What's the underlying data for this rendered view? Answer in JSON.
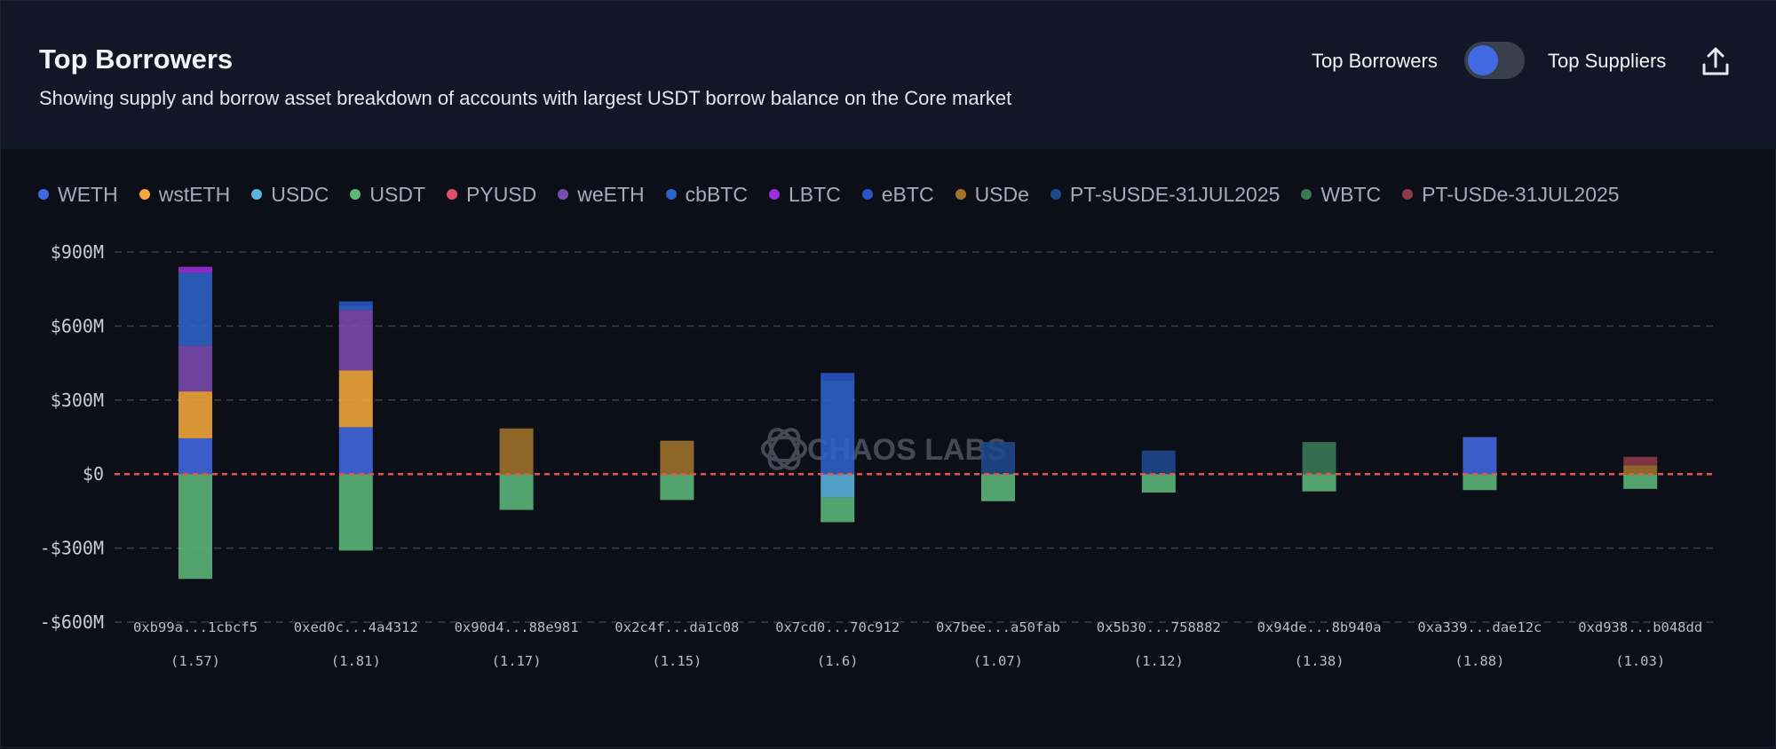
{
  "header": {
    "title": "Top Borrowers",
    "subtitle": "Showing supply and borrow asset breakdown of accounts with largest USDT borrow balance on the Core market",
    "toggle_left_label": "Top Borrowers",
    "toggle_right_label": "Top Suppliers",
    "toggle_state": "Top Borrowers",
    "export_icon": "share-upload-icon"
  },
  "watermark": "CHAOS LABS",
  "chart_data": {
    "type": "bar",
    "stacked": true,
    "title": "Top Borrowers",
    "ylim": [
      -600,
      900
    ],
    "yticks": [
      -600,
      -300,
      0,
      300,
      600,
      900
    ],
    "ytick_labels": [
      "-$600M",
      "-$300M",
      "$0",
      "$300M",
      "$600M",
      "$900M"
    ],
    "grid": true,
    "legend_position": "top-left",
    "zero_line_color": "#e5534b",
    "categories": [
      "0xb99a...1cbcf5",
      "0xed0c...4a4312",
      "0x90d4...88e981",
      "0x2c4f...da1c08",
      "0x7cd0...70c912",
      "0x7bee...a50fab",
      "0x5b30...758882",
      "0x94de...8b940a",
      "0xa339...dae12c",
      "0xd938...b048dd"
    ],
    "category_sublabels": [
      "(1.57)",
      "(1.81)",
      "(1.17)",
      "(1.15)",
      "(1.6)",
      "(1.07)",
      "(1.12)",
      "(1.38)",
      "(1.88)",
      "(1.03)"
    ],
    "series": [
      {
        "name": "WETH",
        "color": "#4169e1",
        "values": [
          145,
          190,
          0,
          0,
          0,
          0,
          0,
          0,
          150,
          0
        ]
      },
      {
        "name": "wstETH",
        "color": "#f5a83a",
        "values": [
          190,
          230,
          0,
          0,
          0,
          0,
          0,
          0,
          0,
          0
        ]
      },
      {
        "name": "USDC",
        "color": "#5ab4dd",
        "values": [
          0,
          0,
          0,
          0,
          -95,
          0,
          0,
          0,
          0,
          0
        ]
      },
      {
        "name": "USDT",
        "color": "#5cb87a",
        "values": [
          -425,
          -310,
          -145,
          -105,
          -100,
          -110,
          -75,
          -70,
          -65,
          -60
        ]
      },
      {
        "name": "PYUSD",
        "color": "#e0506a",
        "values": [
          0,
          0,
          0,
          0,
          0,
          0,
          0,
          0,
          0,
          0
        ]
      },
      {
        "name": "weETH",
        "color": "#7c4bb0",
        "values": [
          185,
          245,
          0,
          0,
          0,
          0,
          0,
          0,
          0,
          0
        ]
      },
      {
        "name": "cbBTC",
        "color": "#2d63c8",
        "values": [
          295,
          20,
          0,
          0,
          380,
          0,
          0,
          0,
          0,
          0
        ]
      },
      {
        "name": "LBTC",
        "color": "#9b30d9",
        "values": [
          25,
          0,
          0,
          0,
          0,
          0,
          0,
          0,
          0,
          0
        ]
      },
      {
        "name": "eBTC",
        "color": "#2b55c6",
        "values": [
          0,
          15,
          0,
          0,
          30,
          0,
          0,
          0,
          0,
          0
        ]
      },
      {
        "name": "USDe",
        "color": "#a0742a",
        "values": [
          0,
          0,
          185,
          135,
          0,
          0,
          0,
          0,
          0,
          35
        ]
      },
      {
        "name": "PT-sUSDE-31JUL2025",
        "color": "#1e4a8c",
        "values": [
          0,
          0,
          0,
          0,
          0,
          130,
          95,
          0,
          0,
          0
        ]
      },
      {
        "name": "WBTC",
        "color": "#3a7a55",
        "values": [
          0,
          0,
          0,
          0,
          0,
          0,
          0,
          130,
          0,
          0
        ]
      },
      {
        "name": "PT-USDe-31JUL2025",
        "color": "#8f3a4a",
        "values": [
          0,
          0,
          0,
          0,
          0,
          0,
          0,
          0,
          0,
          35
        ]
      }
    ]
  }
}
